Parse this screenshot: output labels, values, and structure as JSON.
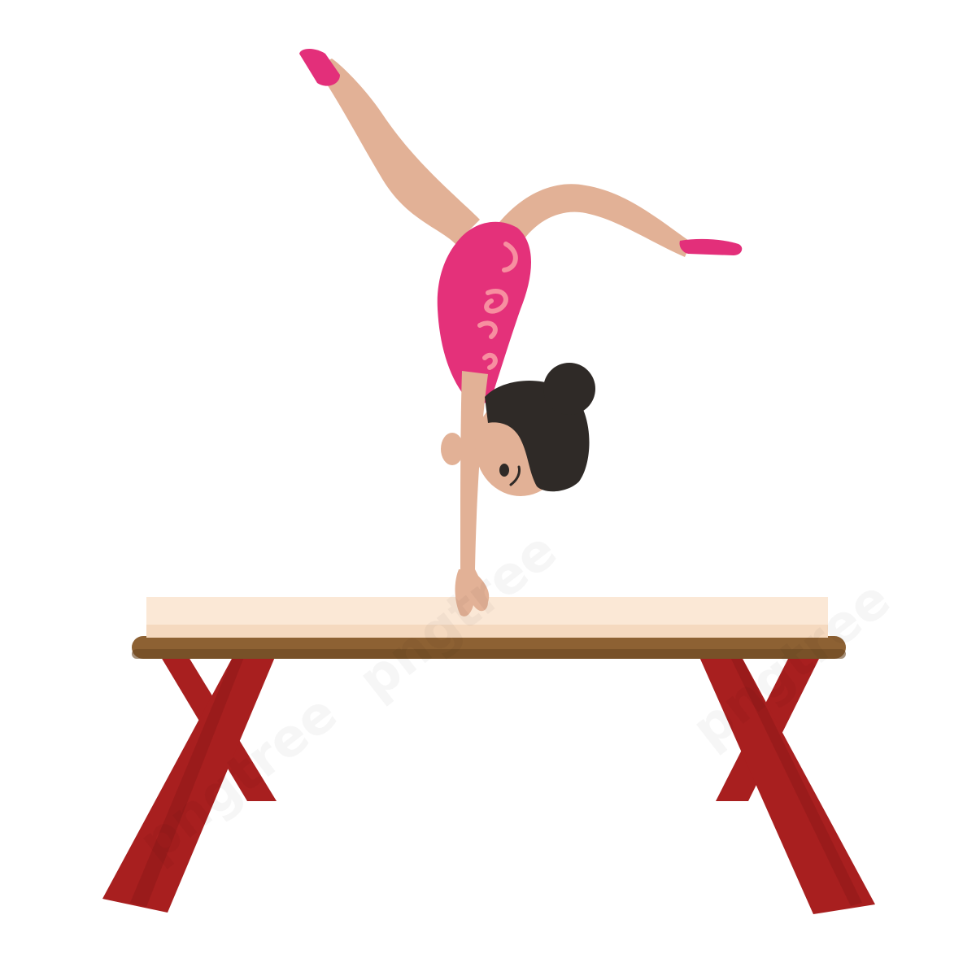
{
  "scene": {
    "subject": "gymnast-handstand-on-balance-beam"
  },
  "watermark": {
    "text_a": "pngtree",
    "text_b": "pngtree",
    "text_c": "pngtree"
  },
  "colors": {
    "background": "#ffffff",
    "skin": "#e2b196",
    "skin_shadow": "#c9957a",
    "leotard": "#e4317a",
    "leotard_pattern": "#f78fa0",
    "leotard_dark": "#c52463",
    "shoe": "#e32f7a",
    "hair": "#2f2a27",
    "beam_top": "#fbe8d6",
    "beam_top_shade": "#f5d9bf",
    "beam_rail": "#8d6133",
    "beam_rail_dark": "#6b4622",
    "legs": "#a81f1f",
    "legs_dark": "#8c1717"
  }
}
